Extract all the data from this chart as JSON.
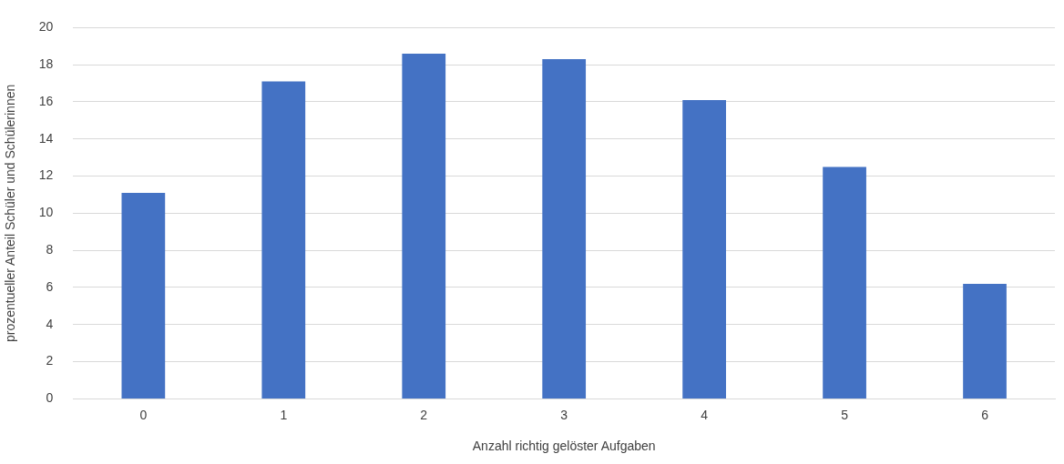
{
  "chart_data": {
    "type": "bar",
    "xlabel": "Anzahl richtig gelöster Aufgaben",
    "ylabel": "prozentueller Anteil Schüler und Schülerinnen",
    "categories": [
      "0",
      "1",
      "2",
      "3",
      "4",
      "5",
      "6"
    ],
    "values": [
      11.1,
      17.1,
      18.6,
      18.3,
      16.1,
      12.5,
      6.2
    ],
    "color": "#4472c4",
    "ylim": [
      0,
      20
    ],
    "yticks": [
      0,
      2,
      4,
      6,
      8,
      10,
      12,
      14,
      16,
      18,
      20
    ],
    "grid": "y",
    "legend": false
  }
}
